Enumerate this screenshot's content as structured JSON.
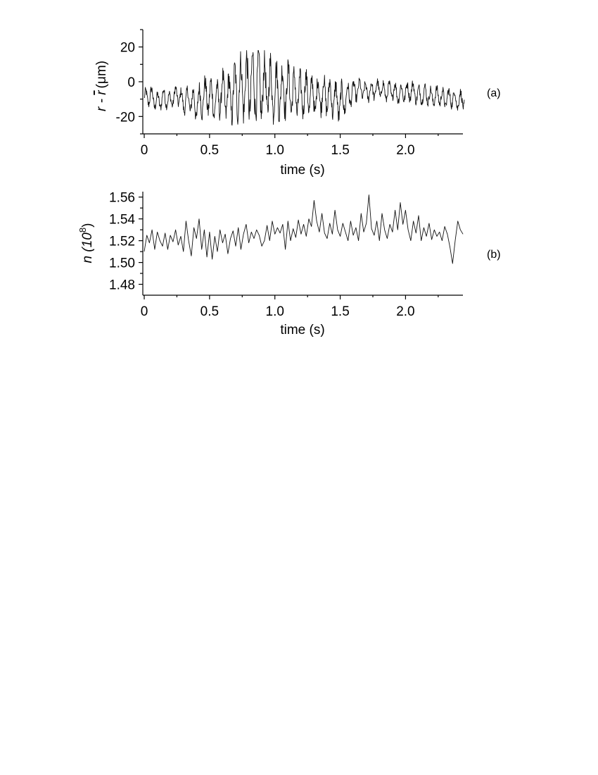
{
  "chart_data": [
    {
      "type": "line",
      "panel_tag": "(a)",
      "xlabel": "time (s)",
      "ylabel": {
        "prefix": "r - ",
        "rbar": "r",
        "unit": "(μm)"
      },
      "xlim": [
        0,
        2.45
      ],
      "ylim": [
        -30,
        30
      ],
      "xticks": [
        0,
        0.5,
        1.0,
        1.5,
        2.0
      ],
      "xtick_labels": [
        "0",
        "0.5",
        "1.0",
        "1.5",
        "2.0"
      ],
      "yticks": [
        -20,
        0,
        20
      ],
      "ytick_labels": [
        "-20",
        "0",
        "20"
      ],
      "series": [
        {
          "x": [
            0,
            0.05,
            0.1,
            0.15,
            0.2,
            0.25,
            0.3,
            0.35,
            0.4,
            0.45,
            0.5,
            0.55,
            0.6,
            0.65,
            0.7,
            0.75,
            0.8,
            0.85,
            0.9,
            0.95,
            1.0,
            1.05,
            1.1,
            1.15,
            1.2,
            1.25,
            1.3,
            1.35,
            1.4,
            1.45,
            1.5,
            1.55,
            1.6,
            1.65,
            1.7,
            1.75,
            1.8,
            1.85,
            1.9,
            1.95,
            2.0,
            2.05,
            2.1,
            2.15,
            2.2,
            2.25,
            2.3,
            2.35,
            2.4,
            2.45
          ],
          "y": [
            -10,
            -8,
            -12,
            -9,
            -11,
            -7,
            -12,
            -10,
            -14,
            -9,
            -8,
            -12,
            -6,
            -10,
            -5,
            -3,
            -2,
            -1,
            -4,
            -3,
            -5,
            -6,
            -4,
            -7,
            -8,
            -6,
            -9,
            -7,
            -8,
            -10,
            -12,
            -9,
            -6,
            -4,
            -6,
            -5,
            -4,
            -6,
            -5,
            -7,
            -6,
            -5,
            -8,
            -7,
            -9,
            -8,
            -10,
            -9,
            -11,
            -10
          ],
          "amplitude": [
            6,
            6,
            6,
            6,
            5,
            6,
            7,
            9,
            10,
            12,
            12,
            12,
            13,
            16,
            18,
            20,
            22,
            22,
            21,
            20,
            18,
            17,
            16,
            15,
            14,
            13,
            12,
            12,
            12,
            12,
            12,
            9,
            7,
            6,
            6,
            6,
            6,
            6,
            6,
            6,
            6,
            6,
            6,
            6,
            6,
            6,
            6,
            6,
            6,
            6
          ]
        }
      ]
    },
    {
      "type": "line",
      "panel_tag": "(b)",
      "xlabel": "time (s)",
      "ylabel": {
        "prefix": "n (10",
        "exponent": "8",
        "suffix": ")"
      },
      "xlim": [
        0,
        2.45
      ],
      "ylim": [
        1.47,
        1.565
      ],
      "xticks": [
        0,
        0.5,
        1.0,
        1.5,
        2.0
      ],
      "xtick_labels": [
        "0",
        "0.5",
        "1.0",
        "1.5",
        "2.0"
      ],
      "yticks": [
        1.48,
        1.5,
        1.52,
        1.54,
        1.56
      ],
      "ytick_labels": [
        "1.48",
        "1.50",
        "1.52",
        "1.54",
        "1.56"
      ],
      "series": [
        {
          "x": [
            0,
            0.02,
            0.04,
            0.06,
            0.08,
            0.1,
            0.12,
            0.14,
            0.16,
            0.18,
            0.2,
            0.22,
            0.24,
            0.26,
            0.28,
            0.3,
            0.32,
            0.34,
            0.36,
            0.38,
            0.4,
            0.42,
            0.44,
            0.46,
            0.48,
            0.5,
            0.52,
            0.54,
            0.56,
            0.58,
            0.6,
            0.62,
            0.64,
            0.66,
            0.68,
            0.7,
            0.72,
            0.74,
            0.76,
            0.78,
            0.8,
            0.82,
            0.84,
            0.86,
            0.88,
            0.9,
            0.92,
            0.94,
            0.96,
            0.98,
            1.0,
            1.02,
            1.04,
            1.06,
            1.08,
            1.1,
            1.12,
            1.14,
            1.16,
            1.18,
            1.2,
            1.22,
            1.24,
            1.26,
            1.28,
            1.3,
            1.32,
            1.34,
            1.36,
            1.38,
            1.4,
            1.42,
            1.44,
            1.46,
            1.48,
            1.5,
            1.52,
            1.54,
            1.56,
            1.58,
            1.6,
            1.62,
            1.64,
            1.66,
            1.68,
            1.7,
            1.72,
            1.74,
            1.76,
            1.78,
            1.8,
            1.82,
            1.84,
            1.86,
            1.88,
            1.9,
            1.92,
            1.94,
            1.96,
            1.98,
            2.0,
            2.02,
            2.04,
            2.06,
            2.08,
            2.1,
            2.12,
            2.14,
            2.16,
            2.18,
            2.2,
            2.22,
            2.24,
            2.26,
            2.28,
            2.3,
            2.32,
            2.34,
            2.36,
            2.38,
            2.4,
            2.42,
            2.44
          ],
          "y": [
            1.51,
            1.525,
            1.518,
            1.53,
            1.512,
            1.528,
            1.52,
            1.515,
            1.527,
            1.512,
            1.525,
            1.519,
            1.53,
            1.516,
            1.524,
            1.51,
            1.538,
            1.52,
            1.506,
            1.532,
            1.522,
            1.54,
            1.512,
            1.53,
            1.505,
            1.528,
            1.503,
            1.524,
            1.51,
            1.53,
            1.518,
            1.526,
            1.508,
            1.522,
            1.529,
            1.515,
            1.532,
            1.512,
            1.526,
            1.535,
            1.518,
            1.528,
            1.522,
            1.53,
            1.525,
            1.515,
            1.52,
            1.534,
            1.52,
            1.538,
            1.526,
            1.532,
            1.527,
            1.535,
            1.512,
            1.538,
            1.52,
            1.531,
            1.523,
            1.539,
            1.526,
            1.535,
            1.524,
            1.54,
            1.533,
            1.557,
            1.538,
            1.528,
            1.545,
            1.527,
            1.522,
            1.536,
            1.526,
            1.548,
            1.53,
            1.524,
            1.536,
            1.528,
            1.52,
            1.538,
            1.525,
            1.532,
            1.52,
            1.545,
            1.528,
            1.536,
            1.562,
            1.531,
            1.525,
            1.538,
            1.52,
            1.545,
            1.53,
            1.522,
            1.535,
            1.528,
            1.548,
            1.53,
            1.555,
            1.535,
            1.548,
            1.53,
            1.52,
            1.538,
            1.527,
            1.543,
            1.52,
            1.532,
            1.524,
            1.536,
            1.521,
            1.53,
            1.524,
            1.528,
            1.52,
            1.533,
            1.526,
            1.514,
            1.499,
            1.52,
            1.538,
            1.53,
            1.526
          ]
        }
      ]
    }
  ]
}
